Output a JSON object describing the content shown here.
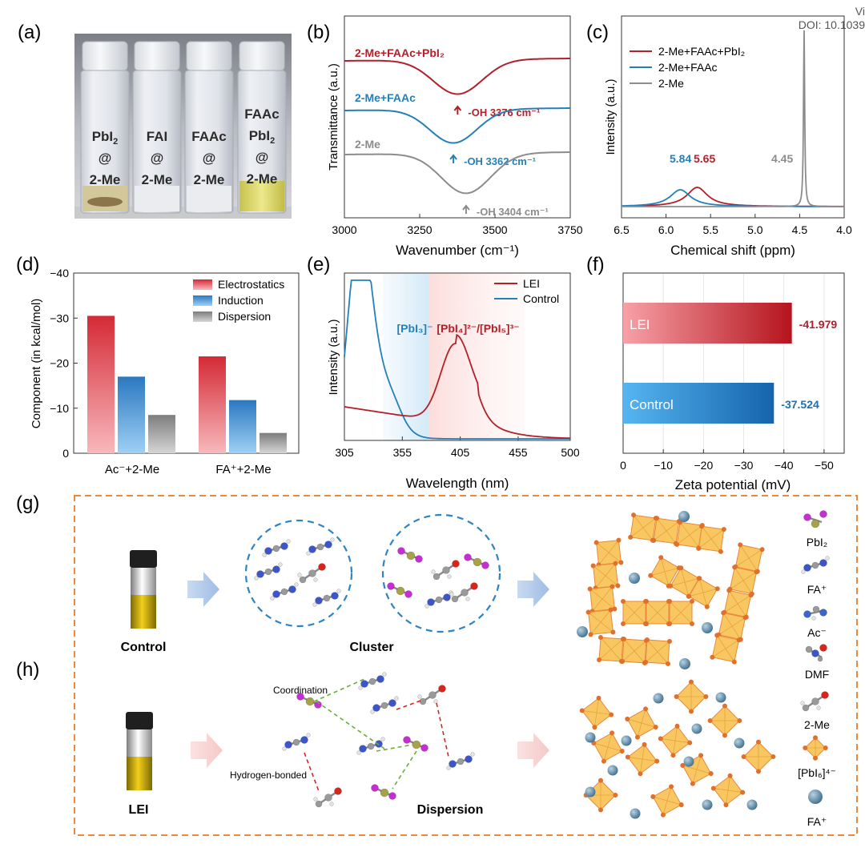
{
  "header": {
    "view_label": "Vi",
    "doi": "DOI: 10.1039"
  },
  "panel_labels": {
    "a": "(a)",
    "b": "(b)",
    "c": "(c)",
    "d": "(d)",
    "e": "(e)",
    "f": "(f)",
    "g": "(g)",
    "h": "(h)"
  },
  "panel_a": {
    "vials": [
      {
        "lines": [
          "PbI",
          "@",
          "2-Me"
        ],
        "sub": "2"
      },
      {
        "lines": [
          "FAI",
          "@",
          "2-Me"
        ]
      },
      {
        "lines": [
          "FAAc",
          "@",
          "2-Me"
        ]
      },
      {
        "lines": [
          "FAAc",
          "PbI",
          "@",
          "2-Me"
        ],
        "sub": "2"
      }
    ]
  },
  "chart_data": [
    {
      "panel": "b",
      "type": "line",
      "xlabel": "Wavenumber (cm⁻¹)",
      "ylabel": "Transmittance (a.u.)",
      "xlim": [
        3000,
        3750
      ],
      "xticks": [
        "3000",
        "3250",
        "3500",
        "3750"
      ],
      "series": [
        {
          "name": "2-Me+FAAc+PbI₂",
          "color": "#b2202a",
          "min_x": 3376,
          "annotation": "-OH 3376 cm⁻¹"
        },
        {
          "name": "2-Me+FAAc",
          "color": "#2480b8",
          "min_x": 3362,
          "annotation": "-OH 3362 cm⁻¹"
        },
        {
          "name": "2-Me",
          "color": "#8c8c8c",
          "min_x": 3404,
          "annotation": "-OH 3404 cm⁻¹"
        }
      ]
    },
    {
      "panel": "c",
      "type": "line",
      "xlabel": "Chemical shift (ppm)",
      "ylabel": "Intensity (a.u.)",
      "xlim": [
        6.5,
        4.0
      ],
      "xticks": [
        "6.5",
        "6.0",
        "5.5",
        "5.0",
        "4.5",
        "4.0"
      ],
      "series": [
        {
          "name": "2-Me+FAAc+PbI₂",
          "color": "#b2202a",
          "peak": 5.65
        },
        {
          "name": "2-Me+FAAc",
          "color": "#2480b8",
          "peak": 5.84
        },
        {
          "name": "2-Me",
          "color": "#8c8c8c",
          "peak": 4.45
        }
      ],
      "peak_labels": [
        "5.84",
        "5.65",
        "4.45"
      ]
    },
    {
      "panel": "d",
      "type": "bar",
      "ylabel": "Component (in kcal/mol)",
      "ylim": [
        0,
        -40
      ],
      "yticks": [
        "0",
        "−10",
        "−20",
        "−30",
        "−40"
      ],
      "categories": [
        "Ac⁻+2-Me",
        "FA⁺+2-Me"
      ],
      "series": [
        {
          "name": "Electrostatics",
          "color": "#d9343f",
          "values": [
            -30.5,
            -21.5
          ]
        },
        {
          "name": "Induction",
          "color": "#2f88cf",
          "values": [
            -17.0,
            -11.8
          ]
        },
        {
          "name": "Dispersion",
          "color": "#8e8e8e",
          "values": [
            -8.5,
            -4.5
          ]
        }
      ]
    },
    {
      "panel": "e",
      "type": "line",
      "xlabel": "Wavelength (nm)",
      "ylabel": "Intensity (a.u.)",
      "xlim": [
        305,
        500
      ],
      "xticks": [
        "305",
        "355",
        "405",
        "455",
        "500"
      ],
      "series": [
        {
          "name": "LEI",
          "color": "#b2202a"
        },
        {
          "name": "Control",
          "color": "#2480b8"
        }
      ],
      "regions": [
        {
          "label": "[PbI₃]⁻",
          "color": "#2480b8"
        },
        {
          "label": "[PbI₄]²⁻/[PbI₅]³⁻",
          "color": "#b2202a"
        }
      ]
    },
    {
      "panel": "f",
      "type": "bar",
      "orientation": "horizontal",
      "xlabel": "Zeta potential (mV)",
      "xlim": [
        0,
        -55
      ],
      "xticks": [
        "0",
        "−10",
        "−20",
        "−30",
        "−40",
        "−50"
      ],
      "categories": [
        "LEI",
        "Control"
      ],
      "values": [
        -41.979,
        -37.524
      ],
      "value_labels": [
        "-41.979",
        "-37.524"
      ],
      "colors": [
        "#e0323a",
        "#2f8ad6"
      ]
    }
  ],
  "panel_gh": {
    "control_label": "Control",
    "lei_label": "LEI",
    "cluster_label": "Cluster",
    "dispersion_label": "Dispersion",
    "coordination_label": "Coordination",
    "hbond_label": "Hydrogen-bonded",
    "legend": [
      "PbI₂",
      "FA⁺",
      "Ac⁻",
      "DMF",
      "2-Me",
      "[PbI₆]⁴⁻",
      "FA⁺"
    ]
  },
  "colors": {
    "red": "#b2202a",
    "blue": "#2480b8",
    "gray": "#8c8c8c",
    "orange_border": "#e8893b",
    "octahedron": "#f5b942"
  }
}
